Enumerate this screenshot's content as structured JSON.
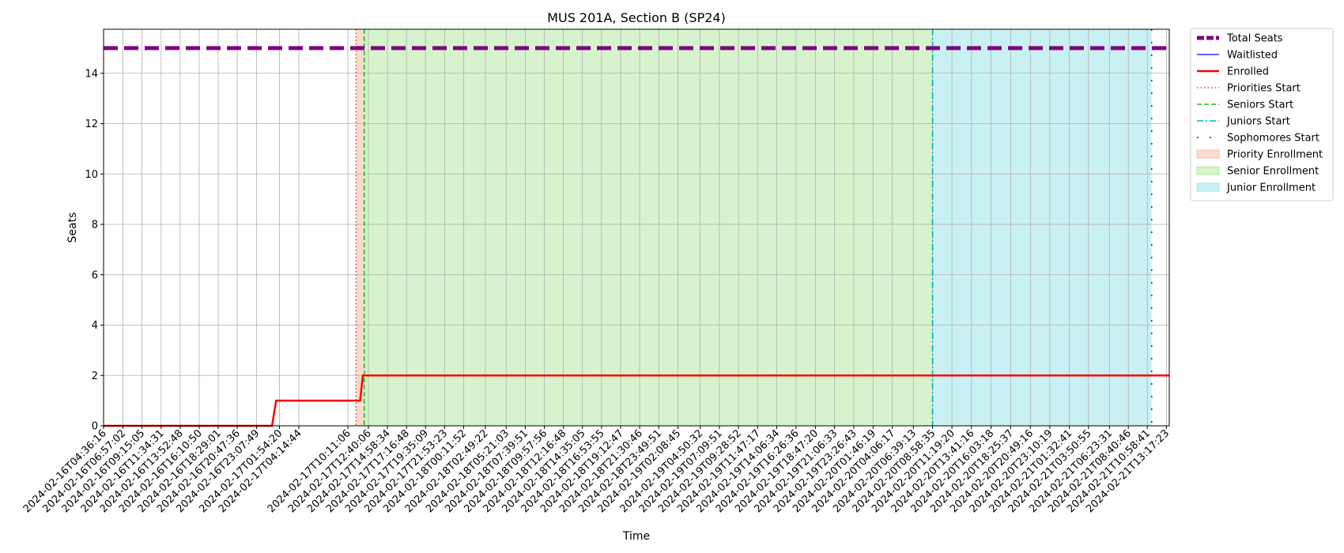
{
  "chart_data": {
    "type": "line",
    "title": "MUS 201A, Section B (SP24)",
    "xlabel": "Time",
    "ylabel": "Seats",
    "ylim": [
      0,
      15.75
    ],
    "yticks": [
      0,
      2,
      4,
      6,
      8,
      10,
      12,
      14
    ],
    "grid": true,
    "legend_position": "outside-top-right",
    "x_ticks": [
      "2024-02-16T04:36:16",
      "2024-02-16T06:57:02",
      "2024-02-16T09:15:05",
      "2024-02-16T11:34:31",
      "2024-02-16T13:52:48",
      "2024-02-16T16:10:50",
      "2024-02-16T18:29:01",
      "2024-02-16T20:47:36",
      "2024-02-16T23:07:49",
      "2024-02-17T01:54:20",
      "2024-02-17T04:14:44",
      "2024-02-17T10:11:06",
      "2024-02-17T12:40:06",
      "2024-02-17T14:58:34",
      "2024-02-17T17:16:48",
      "2024-02-17T19:35:09",
      "2024-02-17T21:53:23",
      "2024-02-18T00:11:52",
      "2024-02-18T02:49:22",
      "2024-02-18T05:21:03",
      "2024-02-18T07:39:51",
      "2024-02-18T09:57:56",
      "2024-02-18T12:16:48",
      "2024-02-18T14:35:05",
      "2024-02-18T16:53:55",
      "2024-02-18T19:12:47",
      "2024-02-18T21:30:46",
      "2024-02-18T23:49:51",
      "2024-02-19T02:08:45",
      "2024-02-19T04:50:32",
      "2024-02-19T07:09:51",
      "2024-02-19T09:28:52",
      "2024-02-19T11:47:17",
      "2024-02-19T14:06:34",
      "2024-02-19T16:26:36",
      "2024-02-19T18:47:20",
      "2024-02-19T21:06:33",
      "2024-02-19T23:26:43",
      "2024-02-20T01:46:19",
      "2024-02-20T04:06:17",
      "2024-02-20T06:39:13",
      "2024-02-20T08:58:35",
      "2024-02-20T11:19:20",
      "2024-02-20T13:41:16",
      "2024-02-20T16:03:18",
      "2024-02-20T18:25:37",
      "2024-02-20T20:49:16",
      "2024-02-20T23:10:19",
      "2024-02-21T01:32:41",
      "2024-02-21T03:50:55",
      "2024-02-21T06:23:31",
      "2024-02-21T08:40:46",
      "2024-02-21T10:58:41",
      "2024-02-21T13:17:23"
    ],
    "series": [
      {
        "name": "Total Seats",
        "color": "#800080",
        "style": "dashed-thick",
        "points": [
          [
            "2024-02-16T04:36:16",
            15
          ],
          [
            "2024-02-21T13:17:23",
            15
          ]
        ]
      },
      {
        "name": "Waitlisted",
        "color": "#0000ff",
        "style": "solid-thin",
        "points": []
      },
      {
        "name": "Enrolled",
        "color": "#ff0000",
        "style": "solid",
        "points": [
          [
            "2024-02-16T04:36:16",
            0
          ],
          [
            "2024-02-17T01:00:00",
            0
          ],
          [
            "2024-02-17T01:30:00",
            1
          ],
          [
            "2024-02-17T11:40:00",
            1
          ],
          [
            "2024-02-17T12:00:00",
            2
          ],
          [
            "2024-02-21T13:17:23",
            2
          ]
        ]
      }
    ],
    "markers": [
      {
        "name": "Priorities Start",
        "color": "#e0501a",
        "style": "dotted",
        "x": "2024-02-17T11:10:00"
      },
      {
        "name": "Seniors Start",
        "color": "#22bb22",
        "style": "dashed",
        "x": "2024-02-17T12:10:00"
      },
      {
        "name": "Juniors Start",
        "color": "#00b5b5",
        "style": "dashdot",
        "x": "2024-02-20T08:58:35"
      },
      {
        "name": "Sophomores Start",
        "color": "#4400ff",
        "style": "loose-dashdot",
        "x": "2024-02-21T11:30:00"
      }
    ],
    "regions": [
      {
        "name": "Priority Enrollment",
        "color": "#f5c0a8",
        "from": "2024-02-17T11:10:00",
        "to": "2024-02-17T12:10:00"
      },
      {
        "name": "Senior Enrollment",
        "color": "#b5eaa5",
        "from": "2024-02-17T12:10:00",
        "to": "2024-02-20T08:58:35"
      },
      {
        "name": "Junior Enrollment",
        "color": "#9de4ea",
        "from": "2024-02-20T08:58:35",
        "to": "2024-02-21T11:30:00"
      }
    ]
  }
}
